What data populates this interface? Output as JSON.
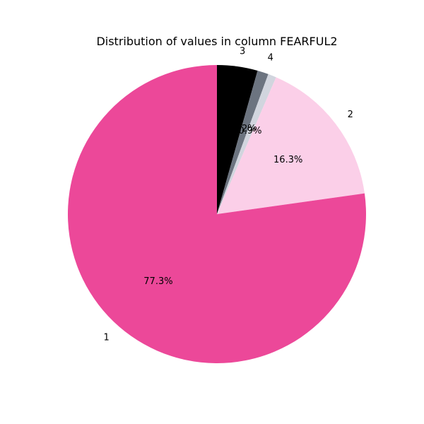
{
  "chart_data": {
    "type": "pie",
    "title": "Distribution of values in column FEARFUL2",
    "start_angle_deg": 90,
    "direction": "clockwise",
    "slices": [
      {
        "label": "3",
        "value": 4.4,
        "pct_label": "4.4%",
        "color": "#000000"
      },
      {
        "label": "4",
        "value": 1.2,
        "pct_label": "1.2%",
        "color": "#6c7480"
      },
      {
        "label": "",
        "value": 0.9,
        "pct_label": "0.9%",
        "color": "#d1d5de"
      },
      {
        "label": "2",
        "value": 16.3,
        "pct_label": "16.3%",
        "color": "#fbcfe8"
      },
      {
        "label": "1",
        "value": 77.3,
        "pct_label": "77.3%",
        "color": "#ec4899"
      }
    ]
  }
}
